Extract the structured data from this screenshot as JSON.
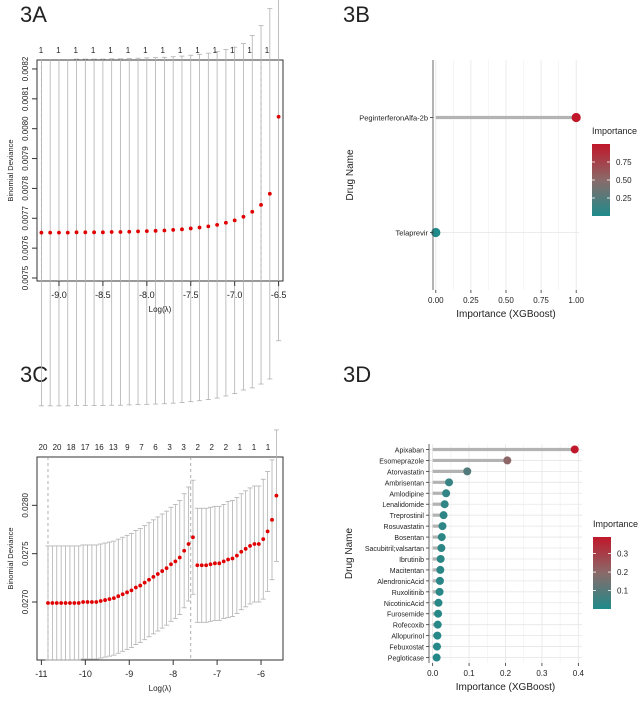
{
  "panels": {
    "a": "3A",
    "b": "3B",
    "c": "3C",
    "d": "3D"
  },
  "colors": {
    "point_red": "#e00000",
    "errorbar": "#b0b0b0",
    "grid": "#e6e6e6",
    "gradient_high": "#c0182a",
    "gradient_mid": "#8a6a6a",
    "gradient_low": "#1f8a8a",
    "stem": "#b3b3b3"
  },
  "chart_data": [
    {
      "id": "3A",
      "type": "scatter",
      "title": "",
      "xlabel": "Log(λ)",
      "ylabel": "Binomial Deviance",
      "xlim": [
        -9.25,
        -6.45
      ],
      "ylim": [
        0.00749,
        0.00823
      ],
      "xticks": [
        -9.0,
        -8.5,
        -8.0,
        -7.5,
        -7.0,
        -6.5
      ],
      "xtick_labels": [
        "-9.0",
        "-8.5",
        "-8.0",
        "-7.5",
        "-7.0",
        "-6.5"
      ],
      "yticks": [
        0.0075,
        0.0076,
        0.0077,
        0.0078,
        0.0079,
        0.008,
        0.0081,
        0.0082
      ],
      "ytick_labels": [
        "0.0075",
        "0.0076",
        "0.0077",
        "0.0078",
        "0.0079",
        "0.0080",
        "0.0081",
        "0.0082"
      ],
      "vlines": [
        -9.2,
        -6.7
      ],
      "top_counts": [
        "1",
        "1",
        "1",
        "1",
        "1",
        "1",
        "1",
        "1",
        "1",
        "1",
        "1",
        "1",
        "1",
        "1"
      ],
      "x": [
        -9.2,
        -9.1,
        -9.0,
        -8.9,
        -8.8,
        -8.7,
        -8.6,
        -8.5,
        -8.4,
        -8.3,
        -8.2,
        -8.1,
        -8.0,
        -7.9,
        -7.8,
        -7.7,
        -7.6,
        -7.5,
        -7.4,
        -7.3,
        -7.2,
        -7.1,
        -7.0,
        -6.9,
        -6.8,
        -6.7,
        -6.6,
        -6.5
      ],
      "y": [
        0.007652,
        0.007652,
        0.007652,
        0.007652,
        0.007653,
        0.007653,
        0.007653,
        0.007653,
        0.007654,
        0.007654,
        0.007655,
        0.007656,
        0.007657,
        0.007658,
        0.007659,
        0.007661,
        0.007663,
        0.007666,
        0.007669,
        0.007673,
        0.007678,
        0.007685,
        0.007693,
        0.007705,
        0.007722,
        0.007745,
        0.007782,
        0.00804
      ],
      "err": [
        0.00058,
        0.00058,
        0.00058,
        0.00058,
        0.00058,
        0.00058,
        0.00058,
        0.00058,
        0.00058,
        0.00058,
        0.00058,
        0.00058,
        0.00058,
        0.00058,
        0.00058,
        0.00058,
        0.00058,
        0.00058,
        0.00058,
        0.00058,
        0.00058,
        0.00058,
        0.00058,
        0.00058,
        0.00059,
        0.0006,
        0.00062,
        0.00075
      ]
    },
    {
      "id": "3B",
      "type": "bar",
      "orientation": "horizontal-lollipop",
      "xlabel": "Importance (XGBoost)",
      "ylabel": "Drug Name",
      "xlim": [
        -0.02,
        1.02
      ],
      "xticks": [
        0.0,
        0.25,
        0.5,
        0.75,
        1.0
      ],
      "xtick_labels": [
        "0.00",
        "0.25",
        "0.50",
        "0.75",
        "1.00"
      ],
      "categories": [
        "PeginterferonAlfa-2b",
        "Telaprevir"
      ],
      "values": [
        1.0,
        0.0
      ],
      "legend": {
        "title": "Importance",
        "labels": [
          "0.75",
          "0.50",
          "0.25"
        ],
        "min": 0.0,
        "max": 1.0,
        "ticks": [
          0.75,
          0.5,
          0.25
        ]
      }
    },
    {
      "id": "3C",
      "type": "scatter",
      "title": "",
      "xlabel": "Log(λ)",
      "ylabel": "Binomial Deviance",
      "xlim": [
        -11.1,
        -5.5
      ],
      "ylim": [
        0.0264,
        0.0285
      ],
      "xticks": [
        -11,
        -10,
        -9,
        -8,
        -7,
        -6
      ],
      "xtick_labels": [
        "-11",
        "-10",
        "-9",
        "-8",
        "-7",
        "-6"
      ],
      "yticks": [
        0.027,
        0.0275,
        0.028
      ],
      "ytick_labels": [
        "0.0270",
        "0.0275",
        "0.0280"
      ],
      "vlines": [
        -10.85,
        -7.6
      ],
      "top_counts": [
        "20",
        "20",
        "18",
        "17",
        "16",
        "13",
        "9",
        "7",
        "6",
        "3",
        "3",
        "2",
        "2",
        "2",
        "1",
        "1",
        "1"
      ],
      "x": [
        -10.85,
        -10.75,
        -10.65,
        -10.55,
        -10.45,
        -10.35,
        -10.25,
        -10.15,
        -10.05,
        -9.95,
        -9.85,
        -9.75,
        -9.65,
        -9.55,
        -9.45,
        -9.35,
        -9.25,
        -9.15,
        -9.05,
        -8.95,
        -8.85,
        -8.75,
        -8.65,
        -8.55,
        -8.45,
        -8.35,
        -8.25,
        -8.15,
        -8.05,
        -7.95,
        -7.85,
        -7.75,
        -7.65,
        -7.55,
        -7.45,
        -7.35,
        -7.25,
        -7.15,
        -7.05,
        -6.95,
        -6.85,
        -6.75,
        -6.65,
        -6.55,
        -6.45,
        -6.35,
        -6.25,
        -6.15,
        -6.05,
        -5.95,
        -5.85,
        -5.75,
        -5.65
      ],
      "y": [
        0.02699,
        0.02699,
        0.02699,
        0.02699,
        0.02699,
        0.02699,
        0.02699,
        0.02699,
        0.027,
        0.027,
        0.027,
        0.027,
        0.02701,
        0.02702,
        0.02703,
        0.02704,
        0.02706,
        0.02708,
        0.0271,
        0.02712,
        0.02715,
        0.02717,
        0.0272,
        0.02723,
        0.02726,
        0.02729,
        0.02732,
        0.02735,
        0.02739,
        0.02742,
        0.02746,
        0.02753,
        0.0276,
        0.02767,
        0.02738,
        0.02738,
        0.02738,
        0.02739,
        0.0274,
        0.0274,
        0.02742,
        0.02744,
        0.02745,
        0.02748,
        0.02752,
        0.02755,
        0.02758,
        0.0276,
        0.0276,
        0.02765,
        0.02773,
        0.02785,
        0.0281
      ],
      "err": [
        0.00059,
        0.00059,
        0.00059,
        0.00059,
        0.00059,
        0.00059,
        0.00059,
        0.00059,
        0.00059,
        0.00059,
        0.00059,
        0.00059,
        0.00059,
        0.00059,
        0.00059,
        0.00059,
        0.00059,
        0.00059,
        0.00059,
        0.00059,
        0.00059,
        0.00059,
        0.00059,
        0.00059,
        0.00059,
        0.00059,
        0.00059,
        0.00059,
        0.00059,
        0.00059,
        0.00059,
        0.00059,
        0.00059,
        0.00059,
        0.00059,
        0.00059,
        0.00059,
        0.00059,
        0.00059,
        0.00059,
        0.00059,
        0.0006,
        0.0006,
        0.0006,
        0.0006,
        0.0006,
        0.0006,
        0.0006,
        0.0006,
        0.00062,
        0.00062,
        0.00062,
        0.00068
      ]
    },
    {
      "id": "3D",
      "type": "bar",
      "orientation": "horizontal-lollipop",
      "xlabel": "Importance (XGBoost)",
      "ylabel": "Drug Name",
      "xlim": [
        -0.01,
        0.41
      ],
      "xticks": [
        0.0,
        0.1,
        0.2,
        0.3,
        0.4
      ],
      "xtick_labels": [
        "0.0",
        "0.1",
        "0.2",
        "0.3",
        "0.4"
      ],
      "categories": [
        "Apixaban",
        "Esomeprazole",
        "Atorvastatin",
        "Ambrisentan",
        "Amlodipine",
        "Lenalidomide",
        "Treprostinil",
        "Rosuvastatin",
        "Bosentan",
        "Sacubitril;valsartan",
        "Ibrutinib",
        "Macitentan",
        "AlendronicAcid",
        "Ruxolitinib",
        "NicotinicAcid",
        "Furosemide",
        "Rofecoxib",
        "Allopurinol",
        "Febuxostat",
        "Pegloticase"
      ],
      "values": [
        0.39,
        0.205,
        0.095,
        0.045,
        0.037,
        0.033,
        0.03,
        0.027,
        0.025,
        0.024,
        0.022,
        0.021,
        0.02,
        0.019,
        0.016,
        0.015,
        0.014,
        0.013,
        0.012,
        0.011
      ],
      "legend": {
        "title": "Importance",
        "labels": [
          "0.3",
          "0.2",
          "0.1"
        ],
        "min": 0.0,
        "max": 0.39,
        "ticks": [
          0.3,
          0.2,
          0.1
        ]
      }
    }
  ]
}
